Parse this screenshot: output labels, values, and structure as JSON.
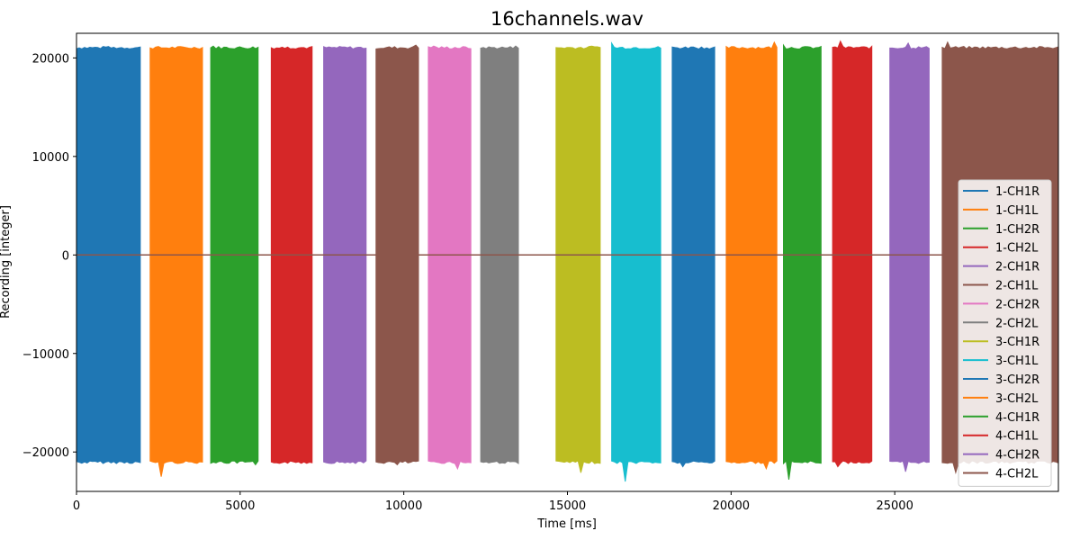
{
  "chart_data": {
    "type": "area",
    "title": "16channels.wav",
    "xlabel": "Time [ms]",
    "ylabel": "Recording [integer]",
    "xlim": [
      0,
      30000
    ],
    "ylim": [
      -24000,
      22500
    ],
    "xticks": [
      0,
      5000,
      10000,
      15000,
      20000,
      25000
    ],
    "yticks": [
      -20000,
      -10000,
      0,
      10000,
      20000
    ],
    "xtick_labels": [
      "0",
      "5000",
      "10000",
      "15000",
      "20000",
      "25000"
    ],
    "ytick_labels": [
      "−20000",
      "−10000",
      "0",
      "10000",
      "20000"
    ],
    "legend_position": "lower right",
    "grid": false,
    "series": [
      {
        "name": "1-CH1R",
        "color": "#1f77b4",
        "burst_start_ms": 0,
        "burst_end_ms": 1950,
        "max": 21100,
        "min": -21100
      },
      {
        "name": "1-CH1L",
        "color": "#ff7f0e",
        "burst_start_ms": 2250,
        "burst_end_ms": 3850,
        "max": 21100,
        "min": -22500
      },
      {
        "name": "1-CH2R",
        "color": "#2ca02c",
        "burst_start_ms": 4100,
        "burst_end_ms": 5550,
        "max": 21200,
        "min": -21300
      },
      {
        "name": "1-CH2L",
        "color": "#d62728",
        "burst_start_ms": 5950,
        "burst_end_ms": 7200,
        "max": 21100,
        "min": -21100
      },
      {
        "name": "2-CH1R",
        "color": "#9467bd",
        "burst_start_ms": 7550,
        "burst_end_ms": 8850,
        "max": 21100,
        "min": -21100
      },
      {
        "name": "2-CH1L",
        "color": "#8c564b",
        "burst_start_ms": 9150,
        "burst_end_ms": 10450,
        "max": 21300,
        "min": -21300
      },
      {
        "name": "2-CH2R",
        "color": "#e377c2",
        "burst_start_ms": 10750,
        "burst_end_ms": 12050,
        "max": 21200,
        "min": -21700
      },
      {
        "name": "2-CH2L",
        "color": "#7f7f7f",
        "burst_start_ms": 12350,
        "burst_end_ms": 13500,
        "max": 21200,
        "min": -21100
      },
      {
        "name": "3-CH1R",
        "color": "#bcbd22",
        "burst_start_ms": 14650,
        "burst_end_ms": 16000,
        "max": 21200,
        "min": -22100
      },
      {
        "name": "3-CH1L",
        "color": "#17becf",
        "burst_start_ms": 16350,
        "burst_end_ms": 17850,
        "max": 21500,
        "min": -23000
      },
      {
        "name": "3-CH2R",
        "color": "#1f77b4",
        "burst_start_ms": 18200,
        "burst_end_ms": 19500,
        "max": 21100,
        "min": -21500
      },
      {
        "name": "3-CH2L",
        "color": "#ff7f0e",
        "burst_start_ms": 19850,
        "burst_end_ms": 21400,
        "max": 21600,
        "min": -21700
      },
      {
        "name": "4-CH1R",
        "color": "#2ca02c",
        "burst_start_ms": 21600,
        "burst_end_ms": 22750,
        "max": 21300,
        "min": -22800
      },
      {
        "name": "4-CH1L",
        "color": "#d62728",
        "burst_start_ms": 23100,
        "burst_end_ms": 24300,
        "max": 21700,
        "min": -21500
      },
      {
        "name": "4-CH2R",
        "color": "#9467bd",
        "burst_start_ms": 24850,
        "burst_end_ms": 26050,
        "max": 21500,
        "min": -22000
      },
      {
        "name": "4-CH2L",
        "color": "#8c564b",
        "burst_start_ms": 26450,
        "burst_end_ms": 30000,
        "max": 21600,
        "min": -22100
      }
    ]
  }
}
